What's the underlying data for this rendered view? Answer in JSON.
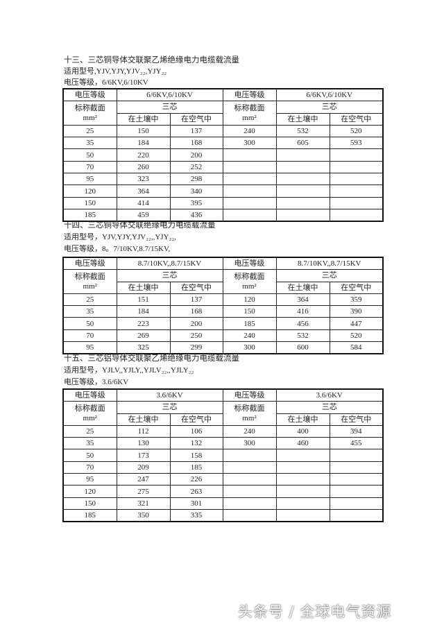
{
  "sections": [
    {
      "title": "十三、三芯铜导体交联聚乙烯绝缘电力电缆载流量",
      "models": "适用型号,YJV,YJY,YJV₂₂,YJY₂₂",
      "voltage_line": "电压等级，6/6KV,6/10KV",
      "table": {
        "voltage_label": "电压等级",
        "voltage_value": "6/6KV,6/10KV",
        "section_label": "标称截面",
        "unit": "mm²",
        "core_label": "三芯",
        "soil_label": "在土壤中",
        "air_label": "在空气中",
        "left_rows": [
          [
            "25",
            "150",
            "137"
          ],
          [
            "35",
            "184",
            "168"
          ],
          [
            "50",
            "220",
            "200"
          ],
          [
            "70",
            "260",
            "252"
          ],
          [
            "95",
            "323",
            "298"
          ],
          [
            "120",
            "364",
            "340"
          ],
          [
            "150",
            "414",
            "395"
          ],
          [
            "185",
            "459",
            "436"
          ]
        ],
        "right_rows": [
          [
            "240",
            "532",
            "520"
          ],
          [
            "300",
            "605",
            "593"
          ]
        ]
      }
    },
    {
      "title": "十四、三芯铜导体交联绝缘电力电缆载流量",
      "models": "适用型号，YJV,YJY,YJV₂₂,,YJY₂₂,",
      "voltage_line": "电压等级，8。7/10KV,8.7/15KV,",
      "table": {
        "voltage_label": "电压等级",
        "voltage_value": "8.7/10KV,,8.7/15KV",
        "section_label": "标称截面",
        "unit": "mm²",
        "core_label": "三芯",
        "soil_label": "在土壤中",
        "air_label": "在空气中",
        "left_rows": [
          [
            "25",
            "151",
            "137"
          ],
          [
            "35",
            "184",
            "168"
          ],
          [
            "50",
            "223",
            "200"
          ],
          [
            "70",
            "269",
            "250"
          ],
          [
            "95",
            "325",
            "299"
          ]
        ],
        "right_rows": [
          [
            "120",
            "364",
            "359"
          ],
          [
            "150",
            "416",
            "390"
          ],
          [
            "185",
            "456",
            "447"
          ],
          [
            "240",
            "532",
            "520"
          ],
          [
            "300",
            "600",
            "584"
          ]
        ]
      }
    },
    {
      "title": "十五、三芯铝导体交联聚乙烯绝缘电力电缆载流量",
      "models": "适用型号，YJLV,,YJLY,,YJLV₂₂,,YJLY₂₂",
      "voltage_line": "电压等级，3.6/6KV",
      "table": {
        "voltage_label": "电压等级",
        "voltage_value": "3.6/6KV",
        "section_label": "标称截面",
        "unit": "mm²",
        "core_label": "三芯",
        "soil_label": "在土壤中",
        "air_label": "在空气中",
        "left_rows": [
          [
            "25",
            "112",
            "106"
          ],
          [
            "35",
            "130",
            "132"
          ],
          [
            "50",
            "173",
            "158"
          ],
          [
            "70",
            "209",
            "185"
          ],
          [
            "95",
            "247",
            "226"
          ],
          [
            "120",
            "275",
            "263"
          ],
          [
            "150",
            "321",
            "301"
          ],
          [
            "185",
            "350",
            "335"
          ]
        ],
        "right_rows": [
          [
            "240",
            "400",
            "394"
          ],
          [
            "300",
            "460",
            "455"
          ]
        ]
      }
    }
  ],
  "watermark": "头条号 / 全球电气资源"
}
